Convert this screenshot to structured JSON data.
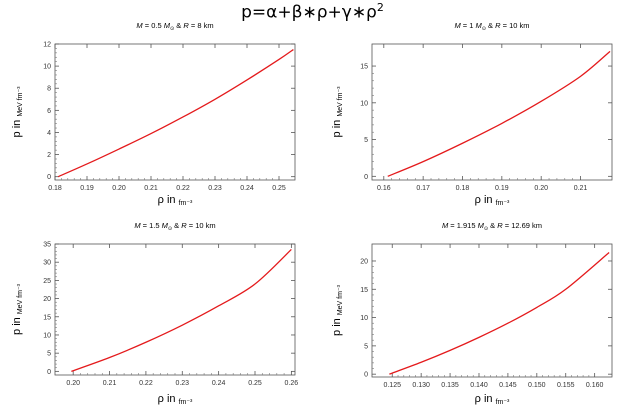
{
  "figure": {
    "title_main": "p=α+β∗ρ+γ∗ρ",
    "title_exp": "2"
  },
  "chart_data": [
    {
      "type": "line",
      "title": {
        "m": "0.5",
        "r": "8",
        "unit": "km"
      },
      "xlabel": "ρ in",
      "xlabel_unit": "fm⁻³",
      "ylabel": "p in",
      "ylabel_unit": "MeV fm⁻³",
      "xlim": [
        0.18,
        0.255
      ],
      "ylim": [
        -0.3,
        12
      ],
      "xticks": [
        0.18,
        0.19,
        0.2,
        0.21,
        0.22,
        0.23,
        0.24,
        0.25
      ],
      "xtick_labels": [
        "0.18",
        "0.19",
        "0.20",
        "0.21",
        "0.22",
        "0.23",
        "0.24",
        "0.25"
      ],
      "yticks": [
        0,
        2,
        4,
        6,
        8,
        10,
        12
      ],
      "ytick_labels": [
        "0",
        "2",
        "4",
        "6",
        "8",
        "10",
        "12"
      ],
      "color": "#e41a1c",
      "x": [
        0.181,
        0.19,
        0.2,
        0.21,
        0.22,
        0.23,
        0.24,
        0.25,
        0.2545
      ],
      "y": [
        0.0,
        1.15,
        2.5,
        3.9,
        5.4,
        7.0,
        8.75,
        10.6,
        11.5
      ]
    },
    {
      "type": "line",
      "title": {
        "m": "1",
        "r": "10",
        "unit": "km"
      },
      "xlabel": "ρ in",
      "xlabel_unit": "fm⁻³",
      "ylabel": "p in",
      "ylabel_unit": "MeV fm⁻³",
      "xlim": [
        0.157,
        0.218
      ],
      "ylim": [
        -0.5,
        18
      ],
      "xticks": [
        0.16,
        0.17,
        0.18,
        0.19,
        0.2,
        0.21
      ],
      "xtick_labels": [
        "0.16",
        "0.17",
        "0.18",
        "0.19",
        "0.20",
        "0.21"
      ],
      "yticks": [
        0,
        5,
        10,
        15
      ],
      "ytick_labels": [
        "0",
        "5",
        "10",
        "15"
      ],
      "color": "#e41a1c",
      "x": [
        0.161,
        0.17,
        0.18,
        0.19,
        0.2,
        0.21,
        0.2175
      ],
      "y": [
        0.0,
        2.0,
        4.5,
        7.2,
        10.2,
        13.6,
        17.0
      ]
    },
    {
      "type": "line",
      "title": {
        "m": "1.5",
        "r": "10",
        "unit": "km"
      },
      "xlabel": "ρ in",
      "xlabel_unit": "fm⁻³",
      "ylabel": "p in",
      "ylabel_unit": "MeV fm⁻³",
      "xlim": [
        0.195,
        0.261
      ],
      "ylim": [
        -1,
        35
      ],
      "xticks": [
        0.2,
        0.21,
        0.22,
        0.23,
        0.24,
        0.25,
        0.26
      ],
      "xtick_labels": [
        "0.20",
        "0.21",
        "0.22",
        "0.23",
        "0.24",
        "0.25",
        "0.26"
      ],
      "yticks": [
        0,
        5,
        10,
        15,
        20,
        25,
        30,
        35
      ],
      "ytick_labels": [
        "0",
        "5",
        "10",
        "15",
        "20",
        "25",
        "30",
        "35"
      ],
      "color": "#e41a1c",
      "x": [
        0.1995,
        0.21,
        0.22,
        0.23,
        0.24,
        0.25,
        0.26
      ],
      "y": [
        0.0,
        3.8,
        8.0,
        12.7,
        18.0,
        24.0,
        33.5
      ]
    },
    {
      "type": "line",
      "title": {
        "m": "1.915",
        "r": "12.69",
        "unit": "km"
      },
      "xlabel": "ρ in",
      "xlabel_unit": "fm⁻³",
      "ylabel": "p in",
      "ylabel_unit": "MeV fm⁻³",
      "xlim": [
        0.1215,
        0.163
      ],
      "ylim": [
        -0.5,
        23
      ],
      "xticks": [
        0.125,
        0.13,
        0.135,
        0.14,
        0.145,
        0.15,
        0.155,
        0.16
      ],
      "xtick_labels": [
        "0.125",
        "0.130",
        "0.135",
        "0.140",
        "0.145",
        "0.150",
        "0.155",
        "0.160"
      ],
      "yticks": [
        0,
        5,
        10,
        15,
        20
      ],
      "ytick_labels": [
        "0",
        "5",
        "10",
        "15",
        "20"
      ],
      "color": "#e41a1c",
      "x": [
        0.1245,
        0.13,
        0.135,
        0.14,
        0.145,
        0.15,
        0.155,
        0.1625
      ],
      "y": [
        0.0,
        2.1,
        4.2,
        6.5,
        9.0,
        11.8,
        15.0,
        21.5
      ]
    }
  ]
}
